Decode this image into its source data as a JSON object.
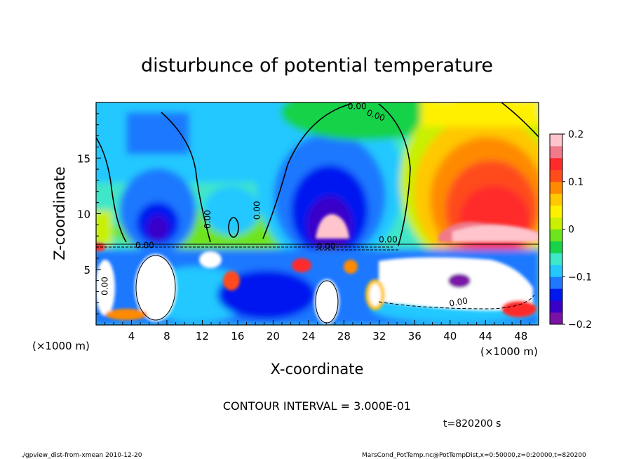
{
  "chart_data": {
    "type": "heatmap",
    "title": "disturbunce of potential temperature",
    "xlabel": "X-coordinate",
    "ylabel": "Z-coordinate",
    "x_unit_left": "(×1000 m)",
    "x_unit_right": "(×1000 m)",
    "xlim": [
      0,
      50
    ],
    "ylim": [
      0,
      20
    ],
    "x_ticks": [
      4,
      8,
      12,
      16,
      20,
      24,
      28,
      32,
      36,
      40,
      44,
      48
    ],
    "y_ticks": [
      5,
      10,
      15
    ],
    "colorbar": {
      "range": [
        -0.2,
        0.2
      ],
      "tick_values": [
        0.2,
        0.1,
        0,
        -0.1,
        -0.2
      ],
      "tick_labels": [
        "0.2",
        "0.1",
        "0",
        "−0.1",
        "−0.2"
      ],
      "colors": [
        "#7b12a8",
        "#3a00c8",
        "#0018f0",
        "#1f78ff",
        "#23c8ff",
        "#3fe6c8",
        "#18d24a",
        "#6ee41e",
        "#c8f000",
        "#fff000",
        "#ffc800",
        "#ff8a00",
        "#ff4c1a",
        "#ff2a2a",
        "#f07a8a",
        "#ffc4cc"
      ]
    },
    "contour_interval_text": "CONTOUR INTERVAL = 3.000E-01",
    "contour_labels": [
      "0.00",
      "0.00",
      "0.00",
      "0.00",
      "0.00",
      "0.00",
      "0.00",
      "0.00",
      "0.00"
    ],
    "time_text": "t=820200 s"
  },
  "footer": {
    "left": "./gpview_dist-from-xmean 2010-12-20",
    "right": "MarsCond_PotTemp.nc@PotTempDist,x=0:50000,z=0:20000,t=820200"
  }
}
